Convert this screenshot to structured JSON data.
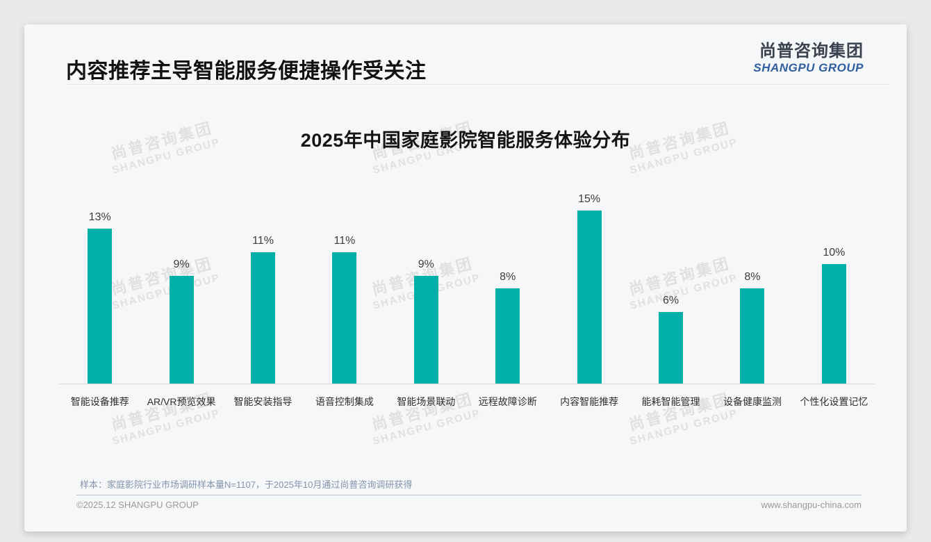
{
  "page": {
    "title": "内容推荐主导智能服务便捷操作受关注",
    "logo": {
      "cn": "尚普咨询集团",
      "en": "SHANGPU GROUP"
    },
    "watermark": {
      "cn": "尚普咨询集团",
      "en": "SHANGPU GROUP"
    },
    "footnote": "样本：家庭影院行业市场调研样本量N=1107，于2025年10月通过尚普咨询调研获得",
    "footer": {
      "copyright": "©2025.12 SHANGPU GROUP",
      "website": "www.shangpu-china.com"
    }
  },
  "colors": {
    "accent_teal": "#00AFA8",
    "logo_blue": "#2F5F9F",
    "logo_dark": "#3A4250",
    "footnote_blue_gray": "#8395AD"
  },
  "chart_data": {
    "type": "bar",
    "title": "2025年中国家庭影院智能服务体验分布",
    "categories": [
      "智能设备推荐",
      "AR/VR预览效果",
      "智能安装指导",
      "语音控制集成",
      "智能场景联动",
      "远程故障诊断",
      "内容智能推荐",
      "能耗智能管理",
      "设备健康监测",
      "个性化设置记忆"
    ],
    "values": [
      13,
      9,
      11,
      11,
      9,
      8,
      15,
      6,
      8,
      10
    ],
    "value_labels": [
      "13%",
      "9%",
      "11%",
      "11%",
      "9%",
      "8%",
      "15%",
      "6%",
      "8%",
      "10%"
    ],
    "unit": "%",
    "xlabel": "",
    "ylabel": "",
    "ylim": [
      0,
      16
    ],
    "bar_color": "#00AFA8",
    "grid": false,
    "legend": false,
    "value_labels_position": "above-bars"
  }
}
